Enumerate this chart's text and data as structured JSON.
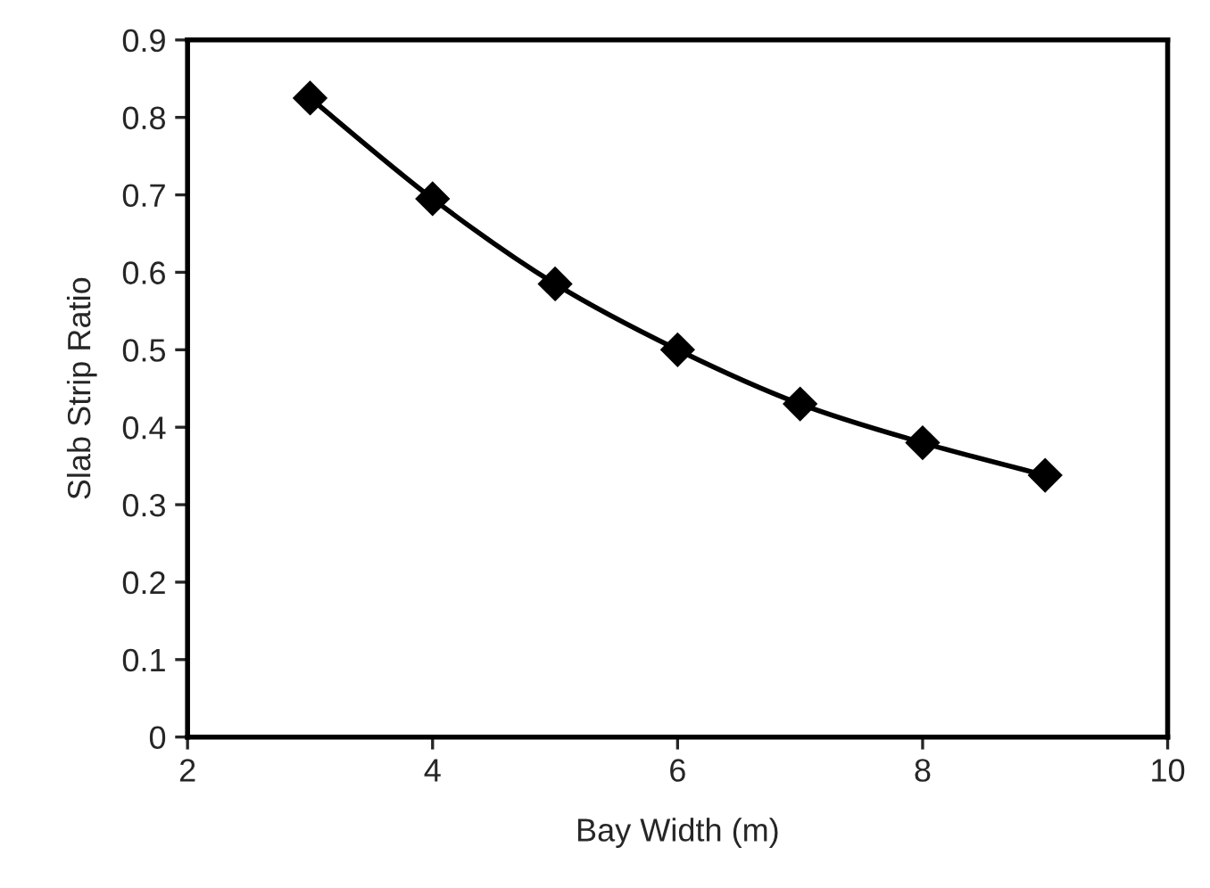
{
  "chart_data": {
    "type": "line",
    "xlabel": "Bay Width (m)",
    "ylabel": "Slab Strip Ratio",
    "x": [
      3,
      4,
      5,
      6,
      7,
      8,
      9
    ],
    "series": [
      {
        "color": "#000000",
        "values": [
          0.825,
          0.695,
          0.585,
          0.5,
          0.43,
          0.38,
          0.338
        ]
      }
    ],
    "xlim": [
      2,
      10
    ],
    "xticks": [
      2,
      4,
      6,
      8,
      10
    ],
    "ylim": [
      0,
      0.9
    ],
    "yticks": [
      0,
      0.1,
      0.2,
      0.3,
      0.4,
      0.5,
      0.6,
      0.7,
      0.8,
      0.9
    ],
    "marker": "diamond",
    "line_style": "solid",
    "grid": false,
    "legend": false
  }
}
